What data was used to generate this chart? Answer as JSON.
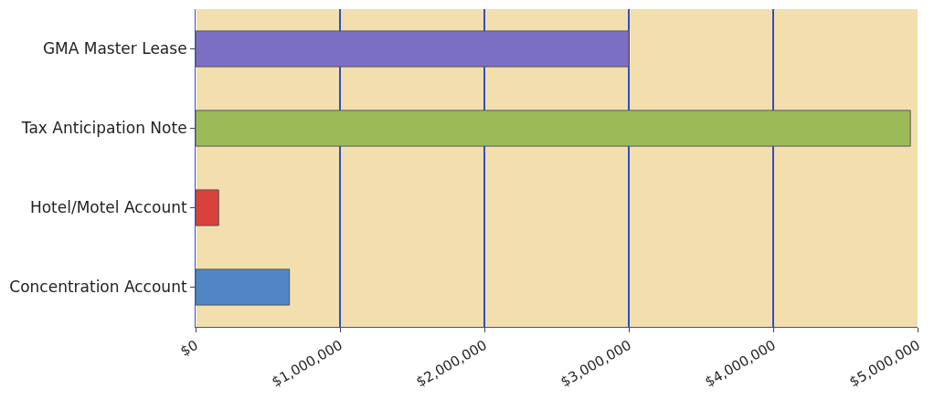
{
  "chart_data": {
    "type": "bar",
    "orientation": "horizontal",
    "categories": [
      "GMA Master Lease",
      "Tax Anticipation Note",
      "Hotel/Motel Account",
      "Concentration Account"
    ],
    "values": [
      3000000,
      4950000,
      160000,
      650000
    ],
    "colors": [
      "#7b6fc4",
      "#9bbb59",
      "#d9413c",
      "#4f86c6"
    ],
    "xlim": [
      0,
      5000000
    ],
    "xticks": [
      {
        "value": 0,
        "label": "$0"
      },
      {
        "value": 1000000,
        "label": "$1,000,000"
      },
      {
        "value": 2000000,
        "label": "$2,000,000"
      },
      {
        "value": 3000000,
        "label": "$3,000,000"
      },
      {
        "value": 4000000,
        "label": "$4,000,000"
      },
      {
        "value": 5000000,
        "label": "$5,000,000"
      }
    ],
    "grid": "x"
  }
}
